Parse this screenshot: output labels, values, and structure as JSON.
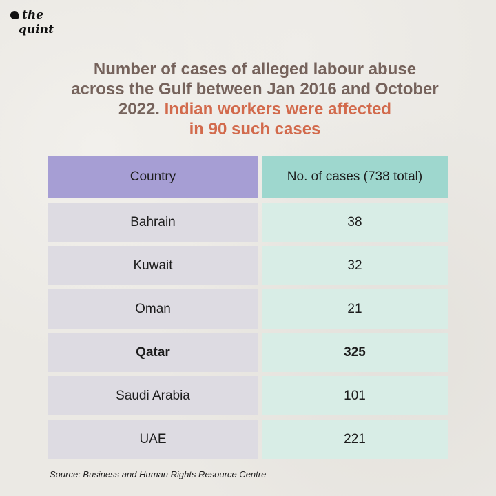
{
  "logo": {
    "line1": "the",
    "line2": "quint"
  },
  "title": {
    "line1": "Number of cases of alleged labour abuse",
    "line2": "across the Gulf between Jan 2016 and October",
    "line3": "2022.",
    "line3_highlight": "Indian workers were affected",
    "line4_highlight": "in 90 such cases"
  },
  "colors": {
    "title": "#75625b",
    "highlight": "#d26a4c",
    "header_country": "#a69ed4",
    "header_cases": "#9ed7ce",
    "cell_country": "#dddbe2",
    "cell_cases": "#d8ede6"
  },
  "chart_data": {
    "type": "table",
    "columns": [
      "Country",
      "No. of cases (738 total)"
    ],
    "rows": [
      {
        "country": "Bahrain",
        "cases": "38"
      },
      {
        "country": "Kuwait",
        "cases": "32"
      },
      {
        "country": "Oman",
        "cases": "21"
      },
      {
        "country": "Qatar",
        "cases": "325",
        "bold": true
      },
      {
        "country": "Saudi Arabia",
        "cases": "101"
      },
      {
        "country": "UAE",
        "cases": "221"
      }
    ]
  },
  "source": "Source: Business and Human Rights Resource Centre"
}
